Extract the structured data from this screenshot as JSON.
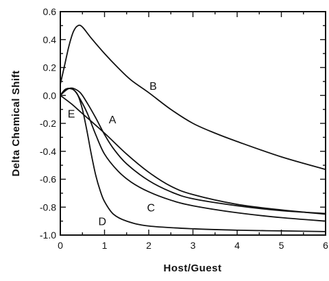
{
  "chart_data": {
    "type": "line",
    "title": "",
    "xlabel": "Host/Guest",
    "ylabel": "Delta  Chemical  Shift",
    "xlim": [
      0,
      6
    ],
    "ylim": [
      -1.0,
      0.6
    ],
    "xticks": [
      0,
      1,
      2,
      3,
      4,
      5,
      6
    ],
    "yticks": [
      0.6,
      0.4,
      0.2,
      0.0,
      -0.2,
      -0.4,
      -0.6,
      -0.8,
      -1.0
    ],
    "ytick_labels": [
      "0.6",
      "0.4",
      "0.2",
      "0.0",
      "-0.2",
      "-0.4",
      "-0.6",
      "-0.8",
      "-1.0"
    ],
    "xtick_labels": [
      "0",
      "1",
      "2",
      "3",
      "4",
      "5",
      "6"
    ],
    "grid": false,
    "series": [
      {
        "name": "A",
        "points": [
          [
            0,
            0.0
          ],
          [
            0.1,
            0.03
          ],
          [
            0.2,
            0.05
          ],
          [
            0.3,
            0.05
          ],
          [
            0.45,
            0.02
          ],
          [
            0.6,
            -0.05
          ],
          [
            0.8,
            -0.16
          ],
          [
            1.0,
            -0.28
          ],
          [
            1.2,
            -0.38
          ],
          [
            1.5,
            -0.49
          ],
          [
            2.0,
            -0.61
          ],
          [
            2.5,
            -0.69
          ],
          [
            3.0,
            -0.74
          ],
          [
            4.0,
            -0.79
          ],
          [
            5.0,
            -0.825
          ],
          [
            6.0,
            -0.845
          ]
        ]
      },
      {
        "name": "B",
        "points": [
          [
            0,
            0.08
          ],
          [
            0.1,
            0.22
          ],
          [
            0.2,
            0.36
          ],
          [
            0.3,
            0.46
          ],
          [
            0.4,
            0.5
          ],
          [
            0.5,
            0.49
          ],
          [
            0.7,
            0.41
          ],
          [
            1.0,
            0.3
          ],
          [
            1.3,
            0.2
          ],
          [
            1.6,
            0.11
          ],
          [
            2.0,
            0.02
          ],
          [
            2.5,
            -0.1
          ],
          [
            3.0,
            -0.2
          ],
          [
            3.5,
            -0.27
          ],
          [
            4.0,
            -0.33
          ],
          [
            5.0,
            -0.44
          ],
          [
            6.0,
            -0.53
          ]
        ]
      },
      {
        "name": "C",
        "points": [
          [
            0,
            0.0
          ],
          [
            0.1,
            0.04
          ],
          [
            0.2,
            0.05
          ],
          [
            0.3,
            0.04
          ],
          [
            0.4,
            0.0
          ],
          [
            0.6,
            -0.12
          ],
          [
            0.8,
            -0.28
          ],
          [
            1.0,
            -0.42
          ],
          [
            1.3,
            -0.54
          ],
          [
            1.6,
            -0.62
          ],
          [
            2.0,
            -0.69
          ],
          [
            2.5,
            -0.75
          ],
          [
            3.0,
            -0.79
          ],
          [
            4.0,
            -0.84
          ],
          [
            5.0,
            -0.875
          ],
          [
            6.0,
            -0.9
          ]
        ]
      },
      {
        "name": "D",
        "points": [
          [
            0,
            0.0
          ],
          [
            0.1,
            0.04
          ],
          [
            0.2,
            0.05
          ],
          [
            0.3,
            0.04
          ],
          [
            0.4,
            0.0
          ],
          [
            0.5,
            -0.1
          ],
          [
            0.6,
            -0.25
          ],
          [
            0.7,
            -0.42
          ],
          [
            0.8,
            -0.57
          ],
          [
            0.9,
            -0.68
          ],
          [
            1.0,
            -0.76
          ],
          [
            1.2,
            -0.85
          ],
          [
            1.5,
            -0.9
          ],
          [
            2.0,
            -0.935
          ],
          [
            3.0,
            -0.955
          ],
          [
            4.0,
            -0.965
          ],
          [
            5.0,
            -0.97
          ],
          [
            6.0,
            -0.975
          ]
        ]
      },
      {
        "name": "E",
        "points": [
          [
            0,
            0.0
          ],
          [
            0.25,
            -0.06
          ],
          [
            0.5,
            -0.13
          ],
          [
            1.0,
            -0.27
          ],
          [
            1.5,
            -0.42
          ],
          [
            2.0,
            -0.55
          ],
          [
            2.5,
            -0.65
          ],
          [
            3.0,
            -0.71
          ],
          [
            4.0,
            -0.78
          ],
          [
            5.0,
            -0.82
          ],
          [
            6.0,
            -0.85
          ]
        ]
      }
    ],
    "annotations": [
      {
        "text": "A",
        "x": 1.18,
        "y": -0.17
      },
      {
        "text": "B",
        "x": 2.1,
        "y": 0.07
      },
      {
        "text": "C",
        "x": 2.05,
        "y": -0.8
      },
      {
        "text": "D",
        "x": 0.95,
        "y": -0.9
      },
      {
        "text": "E",
        "x": 0.25,
        "y": -0.13
      }
    ]
  }
}
